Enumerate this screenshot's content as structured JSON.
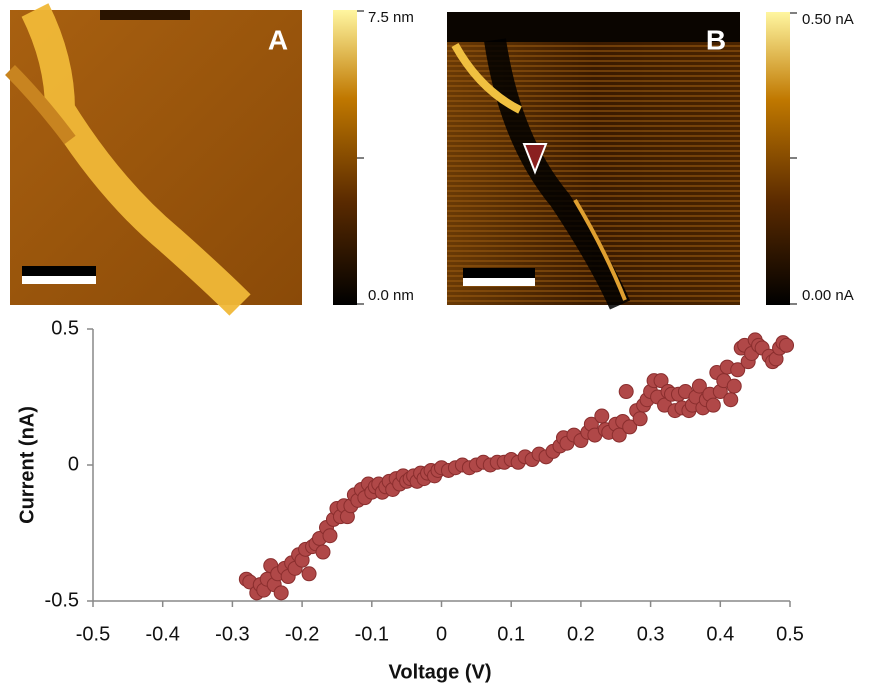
{
  "images": [
    {
      "label": "A",
      "colorbar_max": "7.5 nm",
      "colorbar_min": "0.0 nm"
    },
    {
      "label": "B",
      "colorbar_max": "0.50 nA",
      "colorbar_min": "0.00 nA"
    }
  ],
  "chart_data": {
    "type": "scatter",
    "x_label": "Voltage (V)",
    "y_label": "Current (nA)",
    "xlim": [
      -0.5,
      0.5
    ],
    "xticks": [
      -0.5,
      -0.4,
      -0.3,
      -0.2,
      -0.1,
      0,
      0.1,
      0.2,
      0.3,
      0.4,
      0.5
    ],
    "ylim": [
      -0.5,
      0.5
    ],
    "yticks": [
      -0.5,
      0,
      0.5
    ],
    "color": "#b04848",
    "x": [
      -0.28,
      -0.275,
      -0.265,
      -0.26,
      -0.255,
      -0.25,
      -0.245,
      -0.24,
      -0.235,
      -0.23,
      -0.225,
      -0.22,
      -0.215,
      -0.21,
      -0.205,
      -0.2,
      -0.195,
      -0.19,
      -0.185,
      -0.18,
      -0.175,
      -0.17,
      -0.165,
      -0.16,
      -0.155,
      -0.15,
      -0.145,
      -0.14,
      -0.135,
      -0.13,
      -0.125,
      -0.12,
      -0.115,
      -0.11,
      -0.105,
      -0.1,
      -0.095,
      -0.09,
      -0.085,
      -0.08,
      -0.075,
      -0.07,
      -0.065,
      -0.06,
      -0.055,
      -0.05,
      -0.045,
      -0.04,
      -0.035,
      -0.03,
      -0.025,
      -0.02,
      -0.015,
      -0.01,
      -0.005,
      0,
      0.01,
      0.02,
      0.03,
      0.04,
      0.05,
      0.06,
      0.07,
      0.08,
      0.09,
      0.1,
      0.11,
      0.12,
      0.13,
      0.14,
      0.15,
      0.16,
      0.17,
      0.175,
      0.18,
      0.19,
      0.2,
      0.21,
      0.215,
      0.22,
      0.23,
      0.235,
      0.24,
      0.25,
      0.255,
      0.26,
      0.265,
      0.27,
      0.28,
      0.285,
      0.29,
      0.295,
      0.3,
      0.305,
      0.31,
      0.315,
      0.32,
      0.325,
      0.33,
      0.335,
      0.34,
      0.345,
      0.35,
      0.355,
      0.36,
      0.365,
      0.37,
      0.375,
      0.38,
      0.385,
      0.39,
      0.395,
      0.4,
      0.405,
      0.41,
      0.415,
      0.42,
      0.425,
      0.43,
      0.435,
      0.44,
      0.445,
      0.45,
      0.455,
      0.46,
      0.47,
      0.475,
      0.48,
      0.485,
      0.49,
      0.495
    ],
    "values": [
      -0.42,
      -0.43,
      -0.47,
      -0.44,
      -0.46,
      -0.42,
      -0.37,
      -0.44,
      -0.4,
      -0.47,
      -0.38,
      -0.41,
      -0.36,
      -0.38,
      -0.33,
      -0.35,
      -0.31,
      -0.4,
      -0.3,
      -0.29,
      -0.27,
      -0.32,
      -0.23,
      -0.26,
      -0.2,
      -0.16,
      -0.19,
      -0.15,
      -0.19,
      -0.15,
      -0.11,
      -0.13,
      -0.09,
      -0.12,
      -0.07,
      -0.1,
      -0.08,
      -0.07,
      -0.1,
      -0.08,
      -0.06,
      -0.09,
      -0.05,
      -0.07,
      -0.04,
      -0.06,
      -0.05,
      -0.04,
      -0.06,
      -0.03,
      -0.05,
      -0.03,
      -0.02,
      -0.04,
      -0.02,
      -0.01,
      -0.02,
      -0.01,
      0,
      -0.01,
      0,
      0.01,
      0,
      0.01,
      0.01,
      0.02,
      0.01,
      0.03,
      0.02,
      0.04,
      0.03,
      0.05,
      0.07,
      0.1,
      0.08,
      0.11,
      0.09,
      0.12,
      0.15,
      0.11,
      0.18,
      0.13,
      0.12,
      0.15,
      0.11,
      0.16,
      0.27,
      0.14,
      0.2,
      0.17,
      0.22,
      0.24,
      0.27,
      0.31,
      0.25,
      0.31,
      0.22,
      0.27,
      0.26,
      0.2,
      0.26,
      0.21,
      0.27,
      0.2,
      0.22,
      0.25,
      0.29,
      0.21,
      0.24,
      0.26,
      0.22,
      0.34,
      0.27,
      0.31,
      0.36,
      0.24,
      0.29,
      0.35,
      0.43,
      0.44,
      0.38,
      0.41,
      0.46,
      0.44,
      0.43,
      0.4,
      0.38,
      0.39,
      0.43,
      0.45,
      0.44
    ]
  }
}
